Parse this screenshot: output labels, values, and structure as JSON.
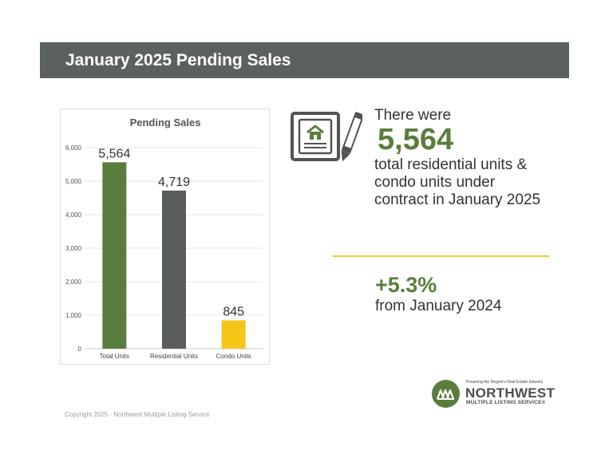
{
  "header": {
    "title": "January 2025 Pending Sales"
  },
  "chart_data": {
    "type": "bar",
    "title": "Pending Sales",
    "categories": [
      "Total Units",
      "Residential Units",
      "Condo Units"
    ],
    "values": [
      5564,
      4719,
      845
    ],
    "value_labels": [
      "5,564",
      "4,719",
      "845"
    ],
    "colors": [
      "#5a7d3c",
      "#595e5c",
      "#f5c518"
    ],
    "ylim": [
      0,
      6000
    ],
    "yticks": [
      0,
      1000,
      2000,
      3000,
      4000,
      5000,
      6000
    ],
    "ytick_labels": [
      "0",
      "1,000",
      "2,000",
      "3,000",
      "4,000",
      "5,000",
      "6,000"
    ],
    "xlabel": "",
    "ylabel": "",
    "grid": true
  },
  "summary": {
    "intro": "There were",
    "count": "5,564",
    "description": "total residential units & condo units under contract in January 2025",
    "icon": "contract-document-pen-icon"
  },
  "change": {
    "percent": "+5.3%",
    "comparison": "from January 2024"
  },
  "logo": {
    "tagline": "Powering the Region's Real Estate Industry",
    "name": "NORTHWEST",
    "subname": "MULTIPLE LISTING SERVICE®",
    "icon": "nwmls-houses-icon"
  },
  "footer": {
    "copyright": "Copyright 2025 - Northwest Multiple Listing Service"
  },
  "colors": {
    "banner": "#5b625d",
    "accent_green": "#5a7d3c",
    "accent_yellow": "#f5cb1b",
    "dark_gray": "#4a4f4b"
  }
}
